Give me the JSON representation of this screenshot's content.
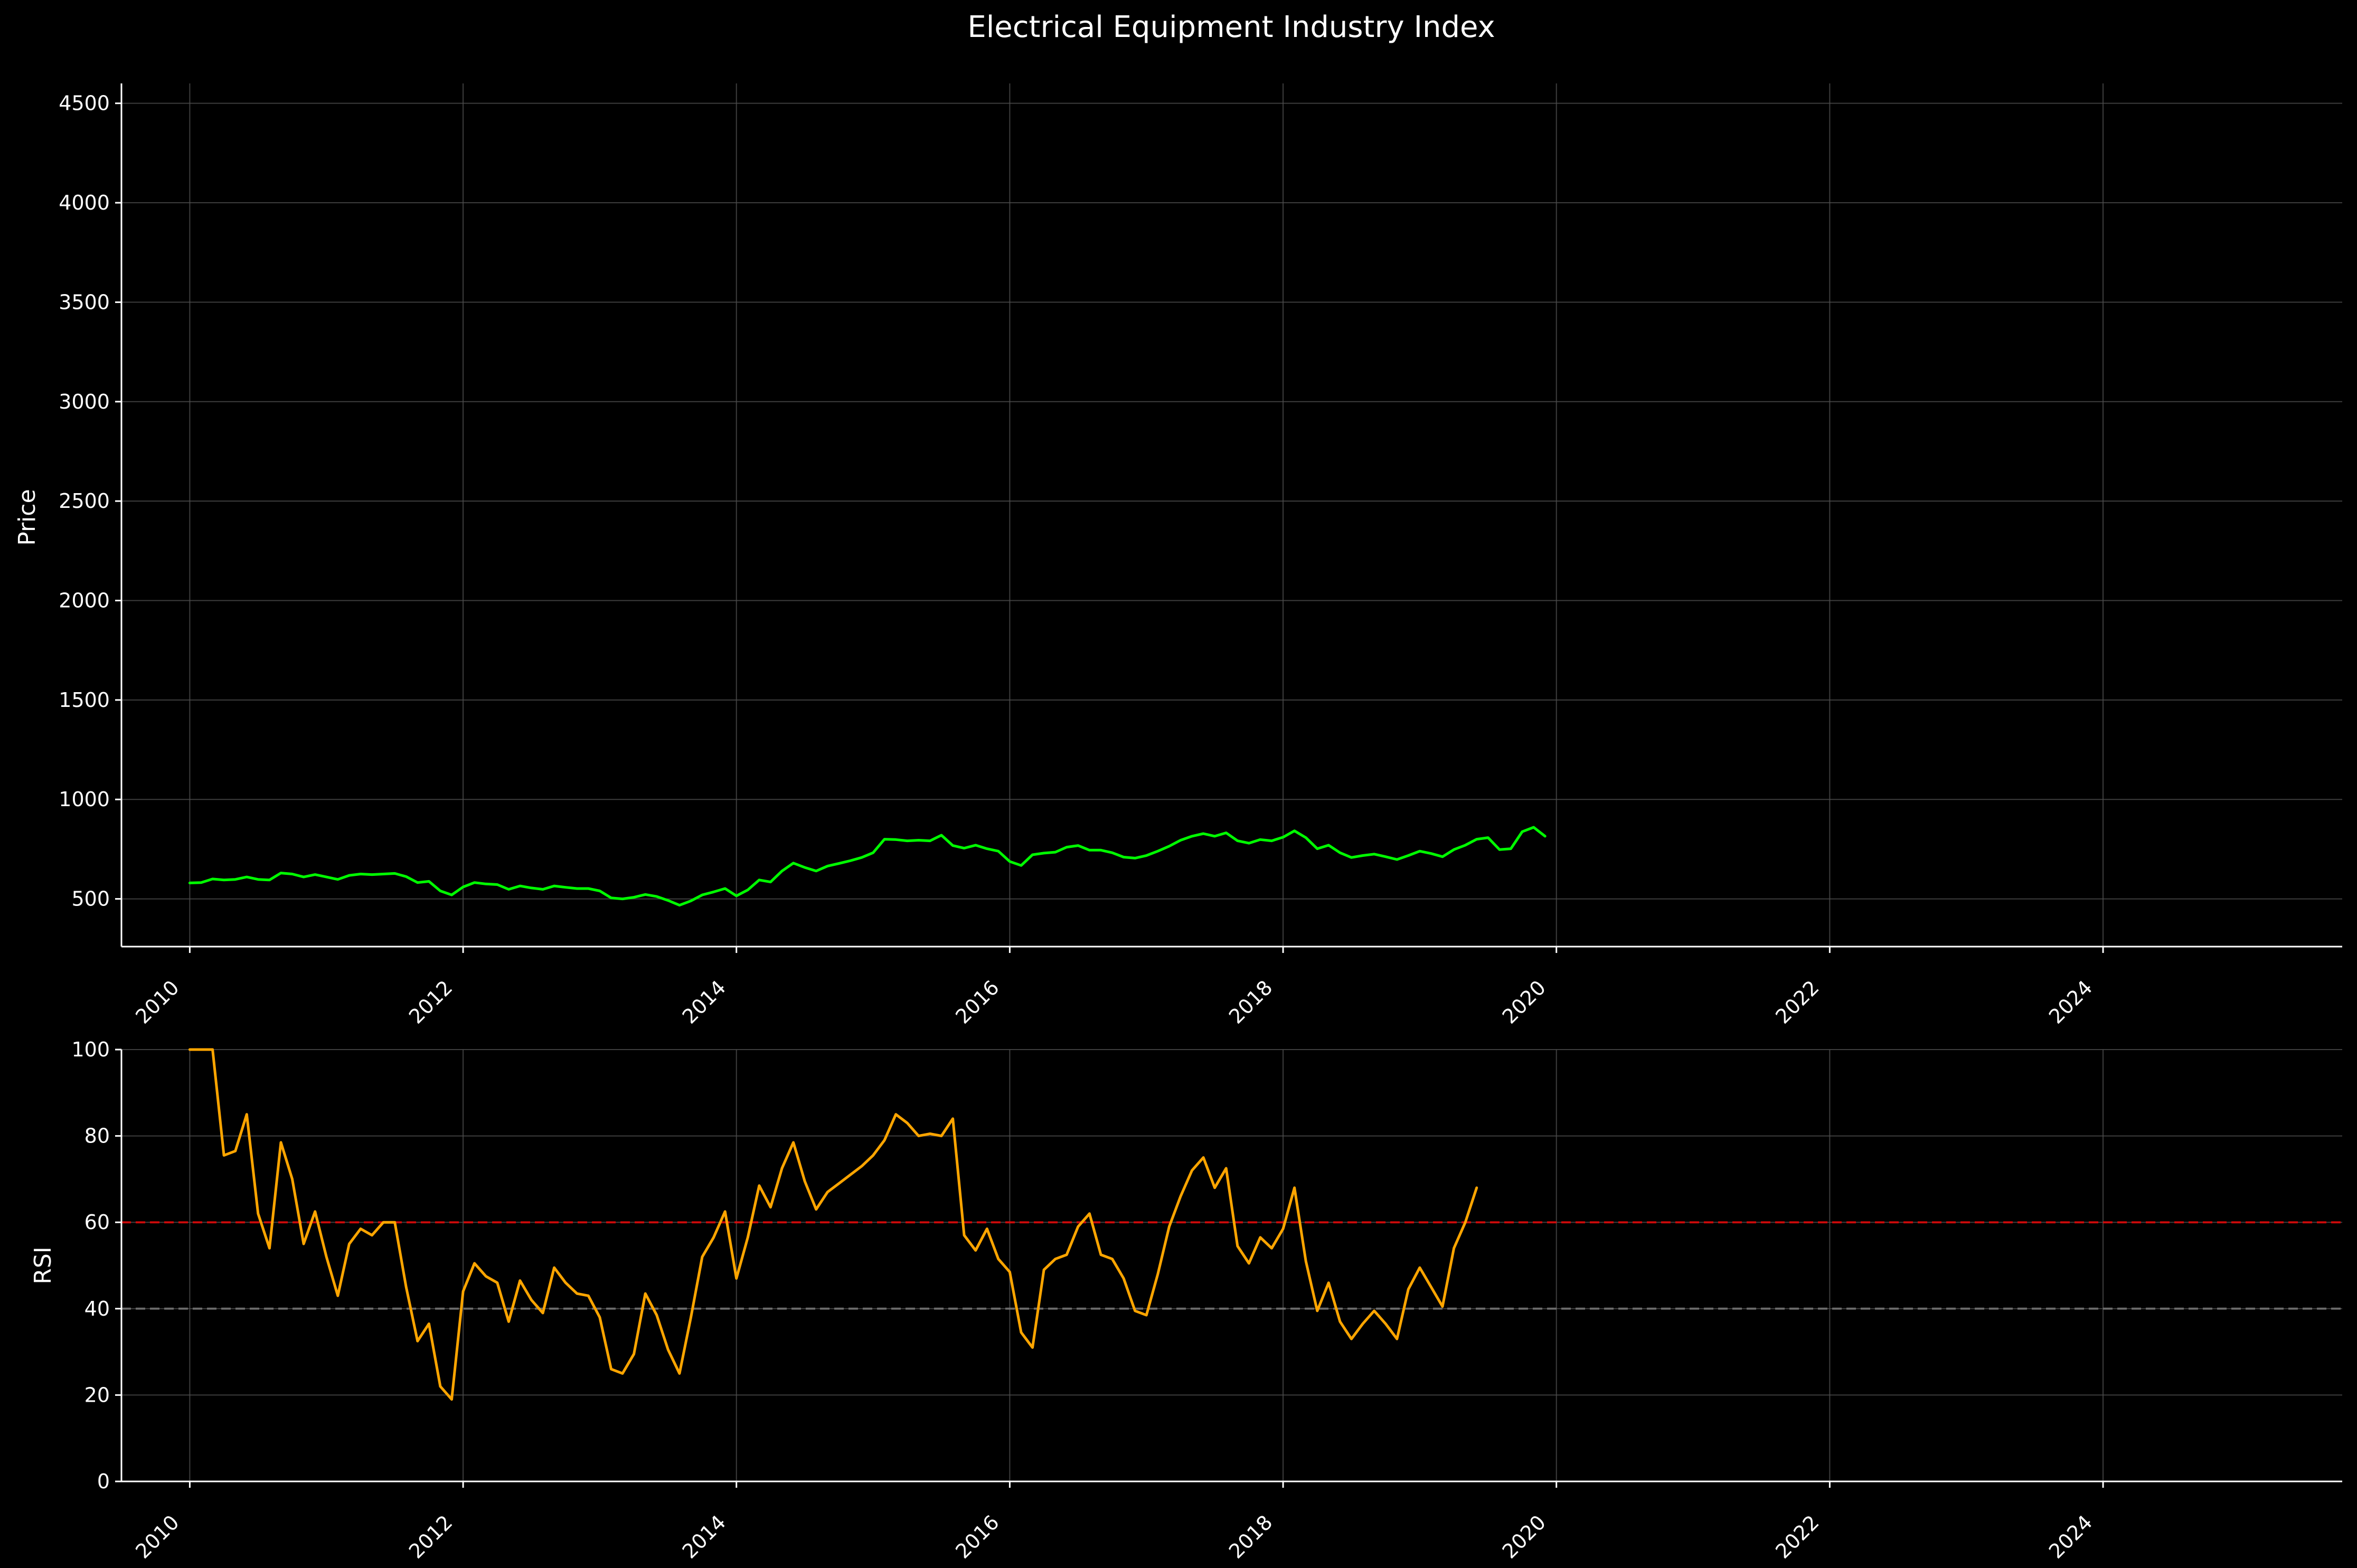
{
  "page": {
    "background": "#000000",
    "text_color": "#ffffff",
    "grid_color": "#4d4d4d"
  },
  "chart_data": {
    "title": "Electrical Equipment Industry Index",
    "x_axis": {
      "type": "time",
      "range": [
        "2009-07-01",
        "2025-10-01"
      ],
      "tick_labels": [
        "2010",
        "2012",
        "2014",
        "2016",
        "2018",
        "2020",
        "2022",
        "2024"
      ],
      "tick_values": [
        2010,
        2012,
        2014,
        2016,
        2018,
        2020,
        2022,
        2024
      ],
      "label_rotation": "45 degrees"
    },
    "price_panel": {
      "type": "line",
      "ylabel": "Price",
      "ylim": [
        260,
        4600
      ],
      "yticks": [
        500,
        1000,
        1500,
        2000,
        2500,
        3000,
        3500,
        4000,
        4500
      ],
      "grid": true,
      "series": [
        {
          "color": "#00ff00",
          "points": [
            [
              "2010-01",
              580
            ],
            [
              "2010-02",
              582
            ],
            [
              "2010-03",
              600
            ],
            [
              "2010-04",
              595
            ],
            [
              "2010-05",
              598
            ],
            [
              "2010-06",
              610
            ],
            [
              "2010-07",
              598
            ],
            [
              "2010-08",
              595
            ],
            [
              "2010-09",
              630
            ],
            [
              "2010-10",
              625
            ],
            [
              "2010-11",
              610
            ],
            [
              "2010-12",
              622
            ],
            [
              "2011-01",
              610
            ],
            [
              "2011-02",
              598
            ],
            [
              "2011-03",
              618
            ],
            [
              "2011-04",
              625
            ],
            [
              "2011-05",
              622
            ],
            [
              "2011-06",
              625
            ],
            [
              "2011-07",
              628
            ],
            [
              "2011-08",
              612
            ],
            [
              "2011-09",
              582
            ],
            [
              "2011-10",
              588
            ],
            [
              "2011-11",
              540
            ],
            [
              "2011-12",
              520
            ],
            [
              "2012-01",
              560
            ],
            [
              "2012-02",
              582
            ],
            [
              "2012-03",
              575
            ],
            [
              "2012-04",
              572
            ],
            [
              "2012-05",
              548
            ],
            [
              "2012-06",
              565
            ],
            [
              "2012-07",
              555
            ],
            [
              "2012-08",
              548
            ],
            [
              "2012-09",
              565
            ],
            [
              "2012-10",
              558
            ],
            [
              "2012-11",
              552
            ],
            [
              "2012-12",
              552
            ],
            [
              "2013-01",
              540
            ],
            [
              "2013-02",
              505
            ],
            [
              "2013-03",
              500
            ],
            [
              "2013-04",
              508
            ],
            [
              "2013-05",
              522
            ],
            [
              "2013-06",
              512
            ],
            [
              "2013-07",
              492
            ],
            [
              "2013-08",
              468
            ],
            [
              "2013-09",
              490
            ],
            [
              "2013-10",
              520
            ],
            [
              "2013-11",
              535
            ],
            [
              "2013-12",
              552
            ],
            [
              "2014-01",
              515
            ],
            [
              "2014-02",
              545
            ],
            [
              "2014-03",
              595
            ],
            [
              "2014-04",
              585
            ],
            [
              "2014-05",
              640
            ],
            [
              "2014-06",
              680
            ],
            [
              "2014-07",
              658
            ],
            [
              "2014-08",
              640
            ],
            [
              "2014-09",
              665
            ],
            [
              "2014-10",
              678
            ],
            [
              "2014-11",
              692
            ],
            [
              "2014-12",
              708
            ],
            [
              "2015-01",
              732
            ],
            [
              "2015-02",
              800
            ],
            [
              "2015-03",
              798
            ],
            [
              "2015-04",
              792
            ],
            [
              "2015-05",
              795
            ],
            [
              "2015-06",
              792
            ],
            [
              "2015-07",
              820
            ],
            [
              "2015-08",
              768
            ],
            [
              "2015-09",
              755
            ],
            [
              "2015-10",
              770
            ],
            [
              "2015-11",
              752
            ],
            [
              "2015-12",
              740
            ],
            [
              "2016-01",
              688
            ],
            [
              "2016-02",
              668
            ],
            [
              "2016-03",
              722
            ],
            [
              "2016-04",
              730
            ],
            [
              "2016-05",
              735
            ],
            [
              "2016-06",
              760
            ],
            [
              "2016-07",
              768
            ],
            [
              "2016-08",
              745
            ],
            [
              "2016-09",
              745
            ],
            [
              "2016-10",
              732
            ],
            [
              "2016-11",
              710
            ],
            [
              "2016-12",
              705
            ],
            [
              "2017-01",
              718
            ],
            [
              "2017-02",
              740
            ],
            [
              "2017-03",
              765
            ],
            [
              "2017-04",
              795
            ],
            [
              "2017-05",
              815
            ],
            [
              "2017-06",
              828
            ],
            [
              "2017-07",
              815
            ],
            [
              "2017-08",
              832
            ],
            [
              "2017-09",
              792
            ],
            [
              "2017-10",
              780
            ],
            [
              "2017-11",
              798
            ],
            [
              "2017-12",
              792
            ],
            [
              "2018-01",
              810
            ],
            [
              "2018-02",
              842
            ],
            [
              "2018-03",
              808
            ],
            [
              "2018-04",
              752
            ],
            [
              "2018-05",
              770
            ],
            [
              "2018-06",
              732
            ],
            [
              "2018-07",
              708
            ],
            [
              "2018-08",
              718
            ],
            [
              "2018-09",
              725
            ],
            [
              "2018-10",
              712
            ],
            [
              "2018-11",
              698
            ],
            [
              "2018-12",
              718
            ],
            [
              "2019-01",
              740
            ],
            [
              "2019-02",
              728
            ],
            [
              "2019-03",
              712
            ],
            [
              "2019-04",
              748
            ],
            [
              "2019-05",
              770
            ],
            [
              "2019-06",
              800
            ],
            [
              "2019-07",
              808
            ],
            [
              "2019-08",
              748
            ],
            [
              "2019-09",
              752
            ],
            [
              "2019-10",
              838
            ],
            [
              "2019-11",
              860
            ],
            [
              "2019-12",
              815
            ]
          ]
        }
      ]
    },
    "rsi_panel": {
      "type": "line",
      "ylabel": "RSI",
      "ylim": [
        0,
        100
      ],
      "yticks": [
        0,
        20,
        40,
        60,
        80,
        100
      ],
      "grid": true,
      "reference_lines": [
        {
          "y": 60,
          "color": "#ff0000",
          "style": "dashed"
        },
        {
          "y": 40,
          "color": "#808080",
          "style": "dashed"
        }
      ],
      "series": [
        {
          "color": "#ffa500",
          "points": [
            [
              "2010-01",
              100
            ],
            [
              "2010-02",
              100
            ],
            [
              "2010-03",
              100
            ],
            [
              "2010-04",
              75.5
            ],
            [
              "2010-05",
              76.5
            ],
            [
              "2010-06",
              85
            ],
            [
              "2010-07",
              62
            ],
            [
              "2010-08",
              54
            ],
            [
              "2010-09",
              78.5
            ],
            [
              "2010-10",
              70
            ],
            [
              "2010-11",
              55
            ],
            [
              "2010-12",
              62.5
            ],
            [
              "2011-01",
              52
            ],
            [
              "2011-02",
              43
            ],
            [
              "2011-03",
              55
            ],
            [
              "2011-04",
              58.5
            ],
            [
              "2011-05",
              57
            ],
            [
              "2011-06",
              60
            ],
            [
              "2011-07",
              60
            ],
            [
              "2011-08",
              45
            ],
            [
              "2011-09",
              32.5
            ],
            [
              "2011-10",
              36.5
            ],
            [
              "2011-11",
              22
            ],
            [
              "2011-12",
              19
            ],
            [
              "2012-01",
              44
            ],
            [
              "2012-02",
              50.5
            ],
            [
              "2012-03",
              47.5
            ],
            [
              "2012-04",
              46
            ],
            [
              "2012-05",
              37
            ],
            [
              "2012-06",
              46.5
            ],
            [
              "2012-07",
              42
            ],
            [
              "2012-08",
              39
            ],
            [
              "2012-09",
              49.5
            ],
            [
              "2012-10",
              46
            ],
            [
              "2012-11",
              43.5
            ],
            [
              "2012-12",
              43
            ],
            [
              "2013-01",
              38
            ],
            [
              "2013-02",
              26
            ],
            [
              "2013-03",
              25
            ],
            [
              "2013-04",
              29.5
            ],
            [
              "2013-05",
              43.5
            ],
            [
              "2013-06",
              38.5
            ],
            [
              "2013-07",
              30.5
            ],
            [
              "2013-08",
              25
            ],
            [
              "2013-09",
              38
            ],
            [
              "2013-10",
              52
            ],
            [
              "2013-11",
              56.5
            ],
            [
              "2013-12",
              62.5
            ],
            [
              "2014-01",
              47
            ],
            [
              "2014-02",
              56.5
            ],
            [
              "2014-03",
              68.5
            ],
            [
              "2014-04",
              63.5
            ],
            [
              "2014-05",
              72.5
            ],
            [
              "2014-06",
              78.5
            ],
            [
              "2014-07",
              69.5
            ],
            [
              "2014-08",
              63
            ],
            [
              "2014-09",
              67
            ],
            [
              "2014-10",
              69
            ],
            [
              "2014-11",
              71
            ],
            [
              "2014-12",
              73
            ],
            [
              "2015-01",
              75.5
            ],
            [
              "2015-02",
              79
            ],
            [
              "2015-03",
              85
            ],
            [
              "2015-04",
              83
            ],
            [
              "2015-05",
              80
            ],
            [
              "2015-06",
              80.5
            ],
            [
              "2015-07",
              80
            ],
            [
              "2015-08",
              84
            ],
            [
              "2015-09",
              57
            ],
            [
              "2015-10",
              53.5
            ],
            [
              "2015-11",
              58.5
            ],
            [
              "2015-12",
              51.5
            ],
            [
              "2016-01",
              48.5
            ],
            [
              "2016-02",
              34.5
            ],
            [
              "2016-03",
              31
            ],
            [
              "2016-04",
              49
            ],
            [
              "2016-05",
              51.5
            ],
            [
              "2016-06",
              52.5
            ],
            [
              "2016-07",
              59
            ],
            [
              "2016-08",
              62
            ],
            [
              "2016-09",
              52.5
            ],
            [
              "2016-10",
              51.5
            ],
            [
              "2016-11",
              47
            ],
            [
              "2016-12",
              39.5
            ],
            [
              "2017-01",
              38.5
            ],
            [
              "2017-02",
              48
            ],
            [
              "2017-03",
              59
            ],
            [
              "2017-04",
              66
            ],
            [
              "2017-05",
              72
            ],
            [
              "2017-06",
              75
            ],
            [
              "2017-07",
              68
            ],
            [
              "2017-08",
              72.5
            ],
            [
              "2017-09",
              54.5
            ],
            [
              "2017-10",
              50.5
            ],
            [
              "2017-11",
              56.5
            ],
            [
              "2017-12",
              54
            ],
            [
              "2018-01",
              58.5
            ],
            [
              "2018-02",
              68
            ],
            [
              "2018-03",
              51
            ],
            [
              "2018-04",
              39.5
            ],
            [
              "2018-05",
              46
            ],
            [
              "2018-06",
              37
            ],
            [
              "2018-07",
              33
            ],
            [
              "2018-08",
              36.5
            ],
            [
              "2018-09",
              39.5
            ],
            [
              "2018-10",
              36.5
            ],
            [
              "2018-11",
              33
            ],
            [
              "2018-12",
              44.5
            ],
            [
              "2019-01",
              49.5
            ],
            [
              "2019-02",
              45
            ],
            [
              "2019-03",
              40.5
            ],
            [
              "2019-04",
              54
            ],
            [
              "2019-05",
              60
            ],
            [
              "2019-06",
              68
            ]
          ]
        }
      ]
    }
  }
}
